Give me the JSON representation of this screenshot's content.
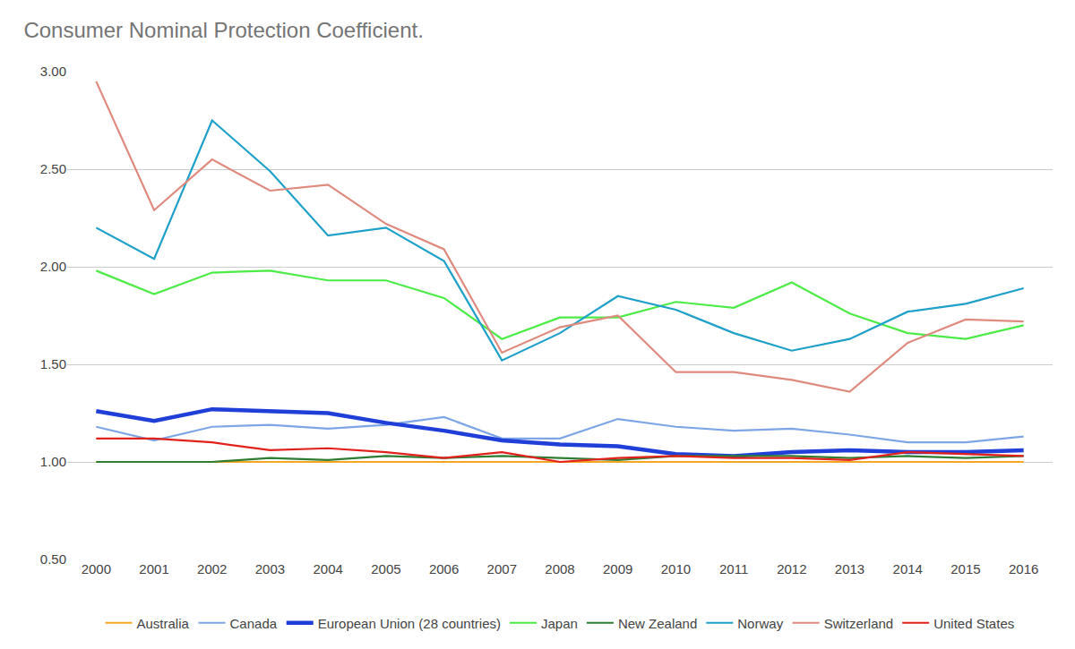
{
  "chart_data": {
    "type": "line",
    "title": "Consumer Nominal Protection Coefficient.",
    "categories": [
      "2000",
      "2001",
      "2002",
      "2003",
      "2004",
      "2005",
      "2006",
      "2007",
      "2008",
      "2009",
      "2010",
      "2011",
      "2012",
      "2013",
      "2014",
      "2015",
      "2016"
    ],
    "ylim": [
      0.5,
      3.0
    ],
    "yticks": [
      {
        "value": 0.5,
        "label": "0.50"
      },
      {
        "value": 1.0,
        "label": "1.00"
      },
      {
        "value": 1.5,
        "label": "1.50"
      },
      {
        "value": 2.0,
        "label": "2.00"
      },
      {
        "value": 2.5,
        "label": "2.50"
      },
      {
        "value": 3.0,
        "label": "3.00"
      }
    ],
    "grid": true,
    "legend": "bottom",
    "series": [
      {
        "name": "Australia",
        "color": "#f5a623",
        "values": [
          1.0,
          1.0,
          1.0,
          1.0,
          1.0,
          1.0,
          1.0,
          1.0,
          1.0,
          1.0,
          1.0,
          1.0,
          1.0,
          1.0,
          1.0,
          1.0,
          1.0
        ]
      },
      {
        "name": "Canada",
        "color": "#7ea6e6",
        "values": [
          1.18,
          1.11,
          1.18,
          1.19,
          1.17,
          1.19,
          1.23,
          1.12,
          1.12,
          1.22,
          1.18,
          1.16,
          1.17,
          1.14,
          1.1,
          1.1,
          1.13
        ]
      },
      {
        "name": "European Union (28 countries)",
        "color": "#1f3fd8",
        "line_style": "bold",
        "values": [
          1.26,
          1.21,
          1.27,
          1.26,
          1.25,
          1.2,
          1.16,
          1.11,
          1.09,
          1.08,
          1.04,
          1.03,
          1.05,
          1.06,
          1.05,
          1.05,
          1.06
        ]
      },
      {
        "name": "Japan",
        "color": "#4deb47",
        "values": [
          1.98,
          1.86,
          1.97,
          1.98,
          1.93,
          1.93,
          1.84,
          1.63,
          1.74,
          1.74,
          1.82,
          1.79,
          1.92,
          1.76,
          1.66,
          1.63,
          1.7
        ]
      },
      {
        "name": "New Zealand",
        "color": "#2e7d32",
        "values": [
          1.0,
          1.0,
          1.0,
          1.02,
          1.01,
          1.03,
          1.02,
          1.03,
          1.02,
          1.01,
          1.03,
          1.03,
          1.03,
          1.02,
          1.03,
          1.02,
          1.03
        ]
      },
      {
        "name": "Norway",
        "color": "#1fa0c8",
        "values": [
          2.2,
          2.04,
          2.75,
          2.49,
          2.16,
          2.2,
          2.03,
          1.52,
          1.66,
          1.85,
          1.78,
          1.66,
          1.57,
          1.63,
          1.77,
          1.81,
          1.89
        ]
      },
      {
        "name": "Switzerland",
        "color": "#df8a7e",
        "values": [
          2.95,
          2.29,
          2.55,
          2.39,
          2.42,
          2.22,
          2.09,
          1.56,
          1.69,
          1.75,
          1.46,
          1.46,
          1.42,
          1.36,
          1.61,
          1.73,
          1.72
        ]
      },
      {
        "name": "United States",
        "color": "#e3211c",
        "values": [
          1.12,
          1.12,
          1.1,
          1.06,
          1.07,
          1.05,
          1.02,
          1.05,
          1.0,
          1.02,
          1.03,
          1.02,
          1.02,
          1.01,
          1.05,
          1.04,
          1.03
        ]
      }
    ]
  }
}
